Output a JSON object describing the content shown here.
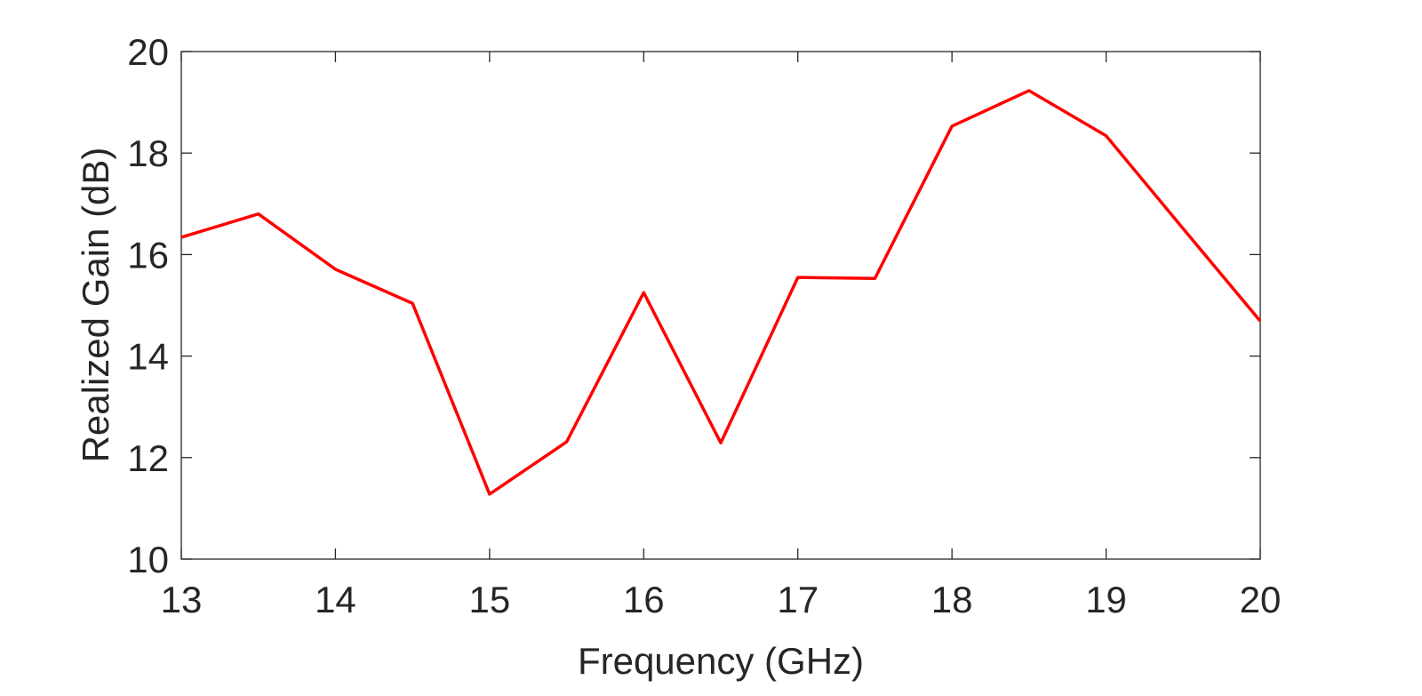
{
  "chart_data": {
    "type": "line",
    "xlabel": "Frequency (GHz)",
    "ylabel": "Realized Gain (dB)",
    "x": [
      13,
      13.5,
      14,
      14.5,
      15,
      15.5,
      16,
      16.5,
      17,
      17.5,
      18,
      18.5,
      19,
      19.5,
      20
    ],
    "series": [
      {
        "color": "#ff0000",
        "values": [
          16.34,
          16.8,
          15.71,
          15.04,
          11.28,
          12.31,
          15.25,
          12.29,
          15.55,
          15.53,
          18.53,
          19.23,
          18.34,
          16.51,
          14.69
        ]
      }
    ],
    "xlim": [
      13,
      20
    ],
    "xticks": [
      13,
      14,
      15,
      16,
      17,
      18,
      19,
      20
    ],
    "ylim": [
      10,
      20
    ],
    "yticks": [
      10,
      12,
      14,
      16,
      18,
      20
    ]
  }
}
